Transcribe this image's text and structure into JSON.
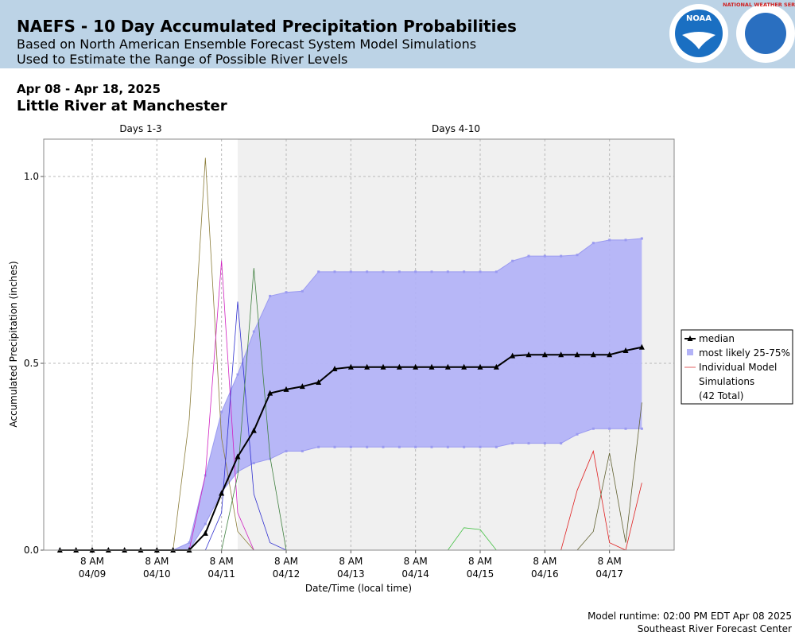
{
  "header": {
    "title": "NAEFS - 10 Day Accumulated Precipitation Probabilities",
    "subtitle": [
      "Based on North American Ensemble Forecast System Model Simulations",
      "Used to Estimate the Range of Possible River Levels"
    ],
    "logos": [
      "NOAA",
      "NATIONAL WEATHER SERVICE"
    ]
  },
  "chart_data": {
    "type": "line",
    "date_range": "Apr 08 - Apr 18, 2025",
    "title": "Little River at Manchester",
    "regions": [
      {
        "name": "Days 1-3",
        "start": "04/08 14:00",
        "end": "04/11 14:00",
        "shade": false
      },
      {
        "name": "Days 4-10",
        "start": "04/11 14:00",
        "end": "04/18 08:00",
        "shade": true
      }
    ],
    "xlabel": "Date/Time (local time)",
    "ylabel": "Accumulated Precipitation (inches)",
    "xlim": [
      "04/08 14:00",
      "04/18 08:00"
    ],
    "xticks": [
      {
        "value": "04/09 08:00",
        "label": "8 AM\n04/09"
      },
      {
        "value": "04/10 08:00",
        "label": "8 AM\n04/10"
      },
      {
        "value": "04/11 08:00",
        "label": "8 AM\n04/11"
      },
      {
        "value": "04/12 08:00",
        "label": "8 AM\n04/12"
      },
      {
        "value": "04/13 08:00",
        "label": "8 AM\n04/13"
      },
      {
        "value": "04/14 08:00",
        "label": "8 AM\n04/14"
      },
      {
        "value": "04/15 08:00",
        "label": "8 AM\n04/15"
      },
      {
        "value": "04/16 08:00",
        "label": "8 AM\n04/16"
      },
      {
        "value": "04/17 08:00",
        "label": "8 AM\n04/17"
      }
    ],
    "ylim": [
      0,
      1.1
    ],
    "yticks": [
      {
        "value": 0,
        "label": "0.0"
      },
      0.5,
      {
        "value": 1,
        "label": "1.0"
      }
    ],
    "grid": true,
    "legend": "right",
    "x": [
      "04/08 20:00",
      "04/09 02:00",
      "04/09 08:00",
      "04/09 14:00",
      "04/09 20:00",
      "04/10 02:00",
      "04/10 08:00",
      "04/10 14:00",
      "04/10 20:00",
      "04/11 02:00",
      "04/11 08:00",
      "04/11 14:00",
      "04/11 20:00",
      "04/12 02:00",
      "04/12 08:00",
      "04/12 14:00",
      "04/12 20:00",
      "04/13 02:00",
      "04/13 08:00",
      "04/13 14:00",
      "04/13 20:00",
      "04/14 02:00",
      "04/14 08:00",
      "04/14 14:00",
      "04/14 20:00",
      "04/15 02:00",
      "04/15 08:00",
      "04/15 14:00",
      "04/15 20:00",
      "04/16 02:00",
      "04/16 08:00",
      "04/16 14:00",
      "04/16 20:00",
      "04/17 02:00",
      "04/17 08:00",
      "04/17 14:00",
      "04/17 20:00"
    ],
    "median": {
      "name": "median",
      "color": "#000000",
      "values": [
        0,
        0,
        0,
        0,
        0,
        0,
        0,
        0,
        0,
        0.045,
        0.152,
        0.25,
        0.32,
        0.42,
        0.43,
        0.438,
        0.449,
        0.485,
        0.49,
        0.49,
        0.49,
        0.49,
        0.49,
        0.49,
        0.49,
        0.49,
        0.49,
        0.49,
        0.52,
        0.523,
        0.523,
        0.523,
        0.523,
        0.523,
        0.523,
        0.534,
        0.543
      ]
    },
    "band": {
      "name": "most likely 25-75%",
      "color": "#b3b3f7",
      "edge": "#9a9af0",
      "upper": [
        0,
        0,
        0,
        0,
        0,
        0,
        0,
        0,
        0.02,
        0.2,
        0.37,
        0.47,
        0.585,
        0.68,
        0.69,
        0.693,
        0.745,
        0.745,
        0.745,
        0.745,
        0.745,
        0.745,
        0.745,
        0.745,
        0.745,
        0.745,
        0.745,
        0.745,
        0.774,
        0.787,
        0.787,
        0.787,
        0.79,
        0.822,
        0.83,
        0.83,
        0.834
      ],
      "lower": [
        0,
        0,
        0,
        0,
        0,
        0,
        0,
        0,
        0,
        0.07,
        0.155,
        0.21,
        0.233,
        0.244,
        0.265,
        0.265,
        0.276,
        0.276,
        0.276,
        0.276,
        0.276,
        0.276,
        0.276,
        0.276,
        0.276,
        0.276,
        0.276,
        0.276,
        0.286,
        0.286,
        0.286,
        0.286,
        0.31,
        0.325,
        0.325,
        0.325,
        0.325
      ]
    },
    "simulations_label": [
      "Individual Model",
      "Simulations",
      "(42 Total)"
    ],
    "simulations_color": "#e06060",
    "simulations": [
      {
        "color": "#8b7d3a",
        "values": [
          0,
          0,
          0,
          0,
          0,
          0,
          0,
          0,
          0.35,
          1.05,
          0.3,
          0.05,
          0,
          0,
          0,
          0,
          0,
          0,
          0,
          0,
          0,
          0,
          0,
          0,
          0,
          0,
          0,
          0,
          0,
          0,
          0,
          0,
          0,
          0,
          0,
          0,
          0
        ]
      },
      {
        "color": "#d020c0",
        "values": [
          0,
          0,
          0,
          0,
          0,
          0,
          0,
          0,
          0,
          0.2,
          0.775,
          0.1,
          0,
          0,
          0,
          0,
          0,
          0,
          0,
          0,
          0,
          0,
          0,
          0,
          0,
          0,
          0,
          0,
          0,
          0,
          0,
          0,
          0,
          0,
          0,
          0,
          0
        ]
      },
      {
        "color": "#3030d0",
        "values": [
          0,
          0,
          0,
          0,
          0,
          0,
          0,
          0,
          0,
          0,
          0.1,
          0.665,
          0.15,
          0.02,
          0,
          0,
          0,
          0,
          0,
          0,
          0,
          0,
          0,
          0,
          0,
          0,
          0,
          0,
          0,
          0,
          0,
          0,
          0,
          0,
          0,
          0,
          0
        ]
      },
      {
        "color": "#408040",
        "values": [
          0,
          0,
          0,
          0,
          0,
          0,
          0,
          0,
          0,
          0,
          0,
          0.2,
          0.755,
          0.25,
          0,
          0,
          0,
          0,
          0,
          0,
          0,
          0,
          0,
          0,
          0,
          0,
          0,
          0,
          0,
          0,
          0,
          0,
          0,
          0,
          0,
          0,
          0
        ]
      },
      {
        "color": "#40c040",
        "values": [
          0,
          0,
          0,
          0,
          0,
          0,
          0,
          0,
          0,
          0,
          0,
          0,
          0,
          0,
          0,
          0,
          0,
          0,
          0,
          0,
          0,
          0,
          0,
          0,
          0,
          0.06,
          0.055,
          0,
          0,
          0,
          0,
          0,
          0,
          0,
          0,
          0,
          0
        ]
      },
      {
        "color": "#e02020",
        "values": [
          0,
          0,
          0,
          0,
          0,
          0,
          0,
          0,
          0,
          0,
          0,
          0,
          0,
          0,
          0,
          0,
          0,
          0,
          0,
          0,
          0,
          0,
          0,
          0,
          0,
          0,
          0,
          0,
          0,
          0,
          0,
          0,
          0.16,
          0.265,
          0.02,
          0,
          0.18
        ]
      },
      {
        "color": "#606030",
        "values": [
          0,
          0,
          0,
          0,
          0,
          0,
          0,
          0,
          0,
          0,
          0,
          0,
          0,
          0,
          0,
          0,
          0,
          0,
          0,
          0,
          0,
          0,
          0,
          0,
          0,
          0,
          0,
          0,
          0,
          0,
          0,
          0,
          0,
          0.05,
          0.26,
          0.02,
          0.395
        ]
      }
    ]
  },
  "footer": [
    "Model runtime: 02:00 PM EDT Apr 08 2025",
    "Southeast River Forecast Center"
  ]
}
